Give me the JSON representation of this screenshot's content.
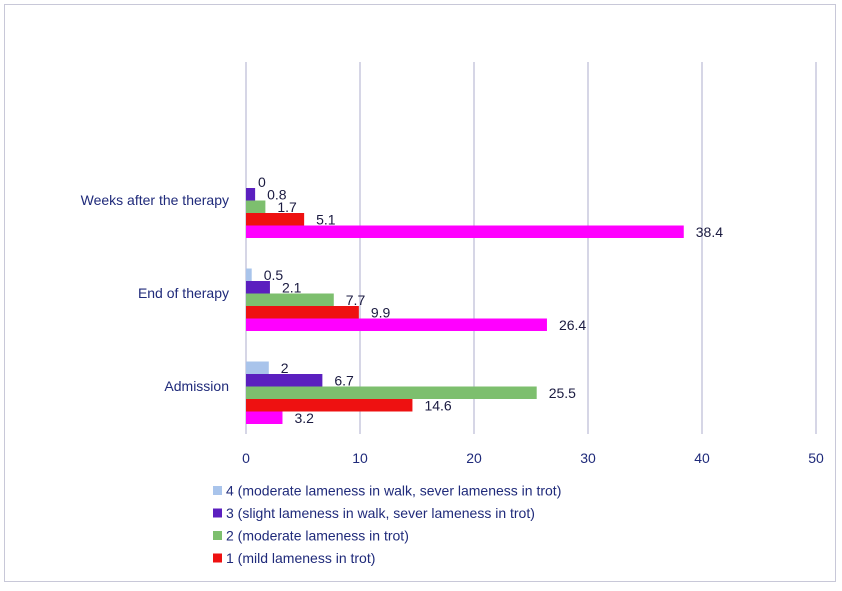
{
  "chart_data": {
    "type": "bar",
    "orientation": "horizontal",
    "categories": [
      "Admission",
      "End of therapy",
      "Weeks after the therapy"
    ],
    "series": [
      {
        "name": "4 (moderate lameness in walk, sever lameness in trot)",
        "color": "#a9c4eb",
        "values": [
          2,
          0.5,
          0
        ]
      },
      {
        "name": "3 (slight lameness in walk, sever lameness in trot)",
        "color": "#5b1fbf",
        "values": [
          6.7,
          2.1,
          0.8
        ]
      },
      {
        "name": "2 (moderate lameness in trot)",
        "color": "#7dbf6e",
        "values": [
          25.5,
          7.7,
          1.7
        ]
      },
      {
        "name": "1 (mild lameness in trot)",
        "color": "#ee1111",
        "values": [
          14.6,
          9.9,
          5.1
        ]
      },
      {
        "name": "",
        "color": "#ff00ff",
        "values": [
          3.2,
          26.4,
          38.4
        ]
      }
    ],
    "data_labels": [
      [
        "2",
        "0.5",
        "0"
      ],
      [
        "6.7",
        "2.1",
        "0.8"
      ],
      [
        "25.5",
        "7.7",
        "1.7"
      ],
      [
        "14.6",
        "9.9",
        "5.1"
      ],
      [
        "3.2",
        "26.4",
        "38.4"
      ]
    ],
    "xlim": [
      0,
      50
    ],
    "xticks": [
      "0",
      "10",
      "20",
      "30",
      "40",
      "50"
    ],
    "xtick_values": [
      0,
      10,
      20,
      30,
      40,
      50
    ],
    "grid": "vertical",
    "legend_position": "bottom-left",
    "legend_series": [
      0,
      1,
      2,
      3
    ]
  }
}
